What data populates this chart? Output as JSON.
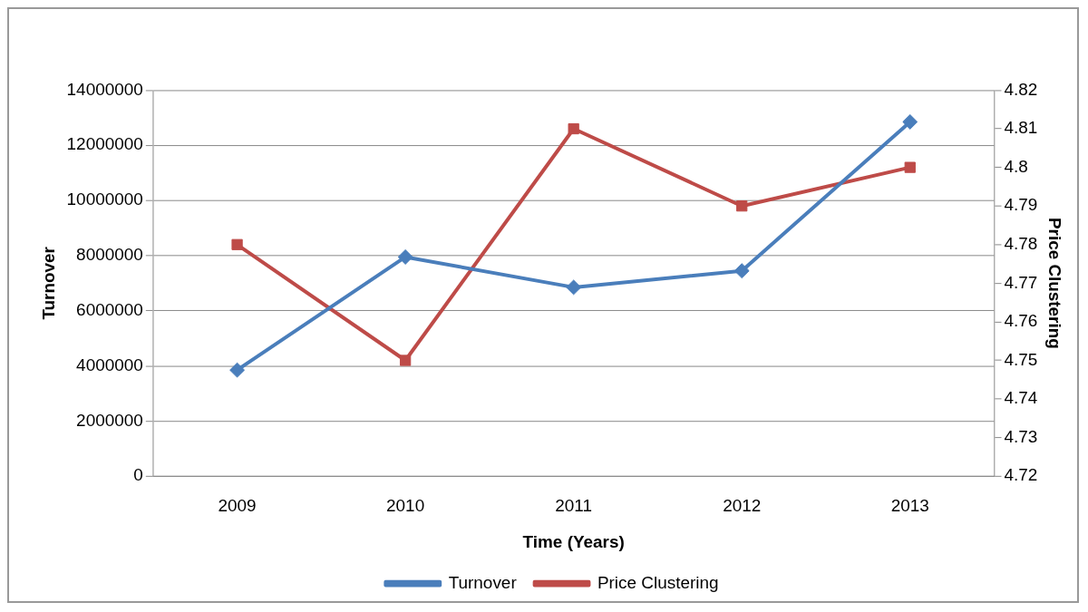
{
  "chart_data": {
    "type": "line",
    "xlabel": "Time (Years)",
    "ylabel": "Turnover",
    "y2label": "Price Clustering",
    "categories": [
      "2009",
      "2010",
      "2011",
      "2012",
      "2013"
    ],
    "series": [
      {
        "name": "Turnover",
        "color": "#4a7ebb",
        "marker": "diamond",
        "values": [
          3850000,
          7950000,
          6850000,
          7450000,
          12850000
        ]
      },
      {
        "name": "Price Clustering",
        "color": "#be4b48",
        "marker": "square",
        "axis": "y2",
        "values": [
          4.78,
          4.75,
          4.81,
          4.79,
          4.8
        ]
      }
    ],
    "ylim": [
      0,
      14000000
    ],
    "yticks": [
      0,
      2000000,
      4000000,
      6000000,
      8000000,
      10000000,
      12000000,
      14000000
    ],
    "y2lim": [
      4.72,
      4.82
    ],
    "y2ticks": [
      4.72,
      4.73,
      4.74,
      4.75,
      4.76,
      4.77,
      4.78,
      4.79,
      4.8,
      4.81,
      4.82
    ],
    "grid": "y",
    "legend": "bottom",
    "line_style": "solid"
  }
}
